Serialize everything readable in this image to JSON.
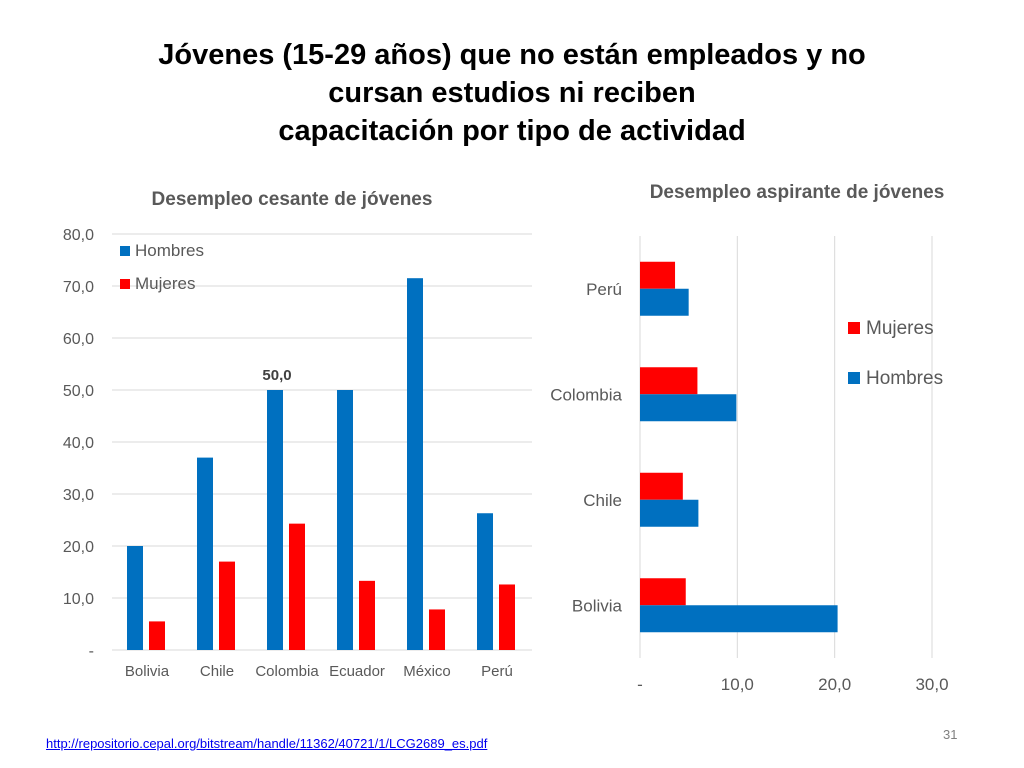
{
  "slide": {
    "title_lines": [
      "Jóvenes (15-29 años) que no están empleados y no",
      "cursan estudios ni reciben",
      "capacitación por tipo de actividad"
    ],
    "source_url": "http://repositorio.cepal.org/bitstream/handle/11362/40721/1/LCG2689_es.pdf",
    "page_number": "31"
  },
  "colors": {
    "hombres": "#0070c0",
    "mujeres": "#ff0000",
    "grid": "#d9d9d9",
    "axis_text": "#595959",
    "title_text": "#595959"
  },
  "chart_data": [
    {
      "type": "bar",
      "title": "Desempleo cesante de jóvenes",
      "categories": [
        "Bolivia",
        "Chile",
        "Colombia",
        "Ecuador",
        "México",
        "Perú"
      ],
      "series": [
        {
          "name": "Hombres",
          "values": [
            20.0,
            37.0,
            50.0,
            50.0,
            71.5,
            26.3
          ]
        },
        {
          "name": "Mujeres",
          "values": [
            5.5,
            17.0,
            24.3,
            13.3,
            7.8,
            12.6
          ]
        }
      ],
      "ylim": [
        0,
        80
      ],
      "y_ticks": [
        "-",
        "10,0",
        "20,0",
        "30,0",
        "40,0",
        "50,0",
        "60,0",
        "70,0",
        "80,0"
      ],
      "annotations": [
        {
          "category": "Colombia",
          "series": "Hombres",
          "text": "50,0"
        }
      ],
      "legend": "top-left",
      "grid": true
    },
    {
      "type": "bar",
      "orientation": "horizontal",
      "title": "Desempleo aspirante de jóvenes",
      "categories": [
        "Bolivia",
        "Chile",
        "Colombia",
        "Perú"
      ],
      "series": [
        {
          "name": "Hombres",
          "values": [
            20.3,
            6.0,
            9.9,
            5.0
          ]
        },
        {
          "name": "Mujeres",
          "values": [
            4.7,
            4.4,
            5.9,
            3.6
          ]
        }
      ],
      "xlim": [
        0,
        30
      ],
      "x_ticks": [
        "-",
        "10,0",
        "20,0",
        "30,0"
      ],
      "legend_items": [
        "Mujeres",
        "Hombres"
      ],
      "legend": "right",
      "grid": true
    }
  ]
}
